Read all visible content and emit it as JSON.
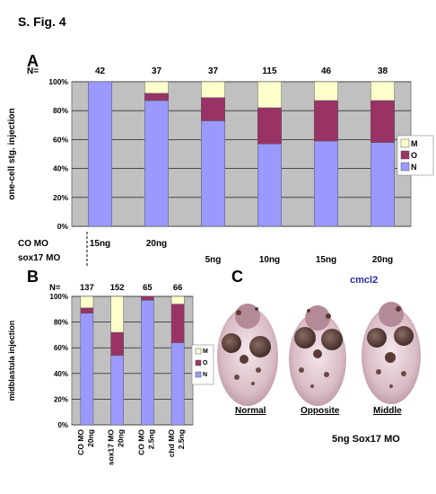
{
  "figure": {
    "title": "S. Fig. 4",
    "panel_a_letter": "A",
    "panel_b_letter": "B",
    "panel_c_letter": "C"
  },
  "colors": {
    "N": "#9999ff",
    "O": "#993366",
    "M": "#ffffcc",
    "plot_bg": "#c0c0c0"
  },
  "chart_data": [
    {
      "type": "bar",
      "stacked": true,
      "panel": "A",
      "ylabel": "one-cell stg. injection",
      "yticks": [
        "0%",
        "20%",
        "40%",
        "60%",
        "80%",
        "100%"
      ],
      "ylim": [
        0,
        100
      ],
      "n_label": "N=",
      "n_values": [
        "42",
        "37",
        "37",
        "115",
        "46",
        "38"
      ],
      "row_labels": [
        "CO MO",
        "sox17 MO"
      ],
      "co_mo_doses": [
        "15ng",
        "20ng",
        "",
        "",
        "",
        ""
      ],
      "sox17_mo_doses": [
        "",
        "",
        "5ng",
        "10ng",
        "15ng",
        "20ng"
      ],
      "legend": [
        "M",
        "O",
        "N"
      ],
      "legend_position": "right",
      "series": [
        {
          "name": "N",
          "values": [
            100,
            87,
            73,
            57,
            59,
            58
          ]
        },
        {
          "name": "O",
          "values": [
            0,
            5,
            16,
            25,
            28,
            29
          ]
        },
        {
          "name": "M",
          "values": [
            0,
            8,
            11,
            18,
            13,
            13
          ]
        }
      ]
    },
    {
      "type": "bar",
      "stacked": true,
      "panel": "B",
      "ylabel": "midblastula injection",
      "yticks": [
        "0%",
        "20%",
        "40%",
        "60%",
        "80%",
        "100%"
      ],
      "ylim": [
        0,
        100
      ],
      "n_label": "N=",
      "n_values": [
        "137",
        "152",
        "65",
        "66"
      ],
      "categories": [
        "CO MO 20ng",
        "sox17 MO 20ng",
        "CO MO 2.5ng",
        "chd MO 2.5ng"
      ],
      "category_lines": [
        [
          "CO MO",
          "20ng"
        ],
        [
          "sox17 MO",
          "20ng"
        ],
        [
          "CO MO",
          "2.5ng"
        ],
        [
          "chd MO",
          "2.5ng"
        ]
      ],
      "legend": [
        "M",
        "O",
        "N"
      ],
      "legend_position": "right",
      "series": [
        {
          "name": "N",
          "values": [
            87,
            54,
            97,
            64
          ]
        },
        {
          "name": "O",
          "values": [
            4,
            18,
            3,
            30
          ]
        },
        {
          "name": "M",
          "values": [
            9,
            28,
            0,
            6
          ]
        }
      ]
    }
  ],
  "panel_c": {
    "gene": "cmcl2",
    "labels": [
      "Normal",
      "Opposite",
      "Middle"
    ],
    "caption": "5ng Sox17 MO"
  }
}
